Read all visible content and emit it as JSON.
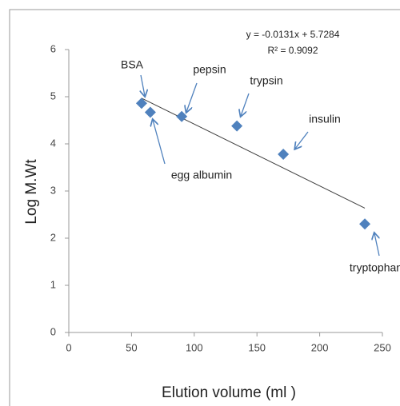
{
  "chart_data": {
    "type": "scatter",
    "xlabel": "Elution volume (ml )",
    "ylabel": "Log M.Wt",
    "x": [
      58,
      65,
      90,
      134,
      171,
      236
    ],
    "series": [
      {
        "name": "Log M.Wt",
        "color": "#4f81bd",
        "values": [
          4.86,
          4.67,
          4.58,
          4.38,
          3.78,
          2.3
        ]
      }
    ],
    "point_labels": [
      "BSA",
      "egg albumin",
      "pepsin",
      "trypsin",
      "insulin",
      "tryptophan"
    ],
    "trendline": {
      "slope": -0.0131,
      "intercept": 5.7284,
      "equation": "y = -0.0131x + 5.7284",
      "r_squared": "R² = 0.9092",
      "color": "#404040"
    },
    "xlim": [
      0,
      250
    ],
    "xticks": [
      0,
      50,
      100,
      150,
      200,
      250
    ],
    "ylim": [
      0,
      6
    ],
    "yticks": [
      0,
      1,
      2,
      3,
      4,
      5,
      6
    ],
    "grid": false
  }
}
